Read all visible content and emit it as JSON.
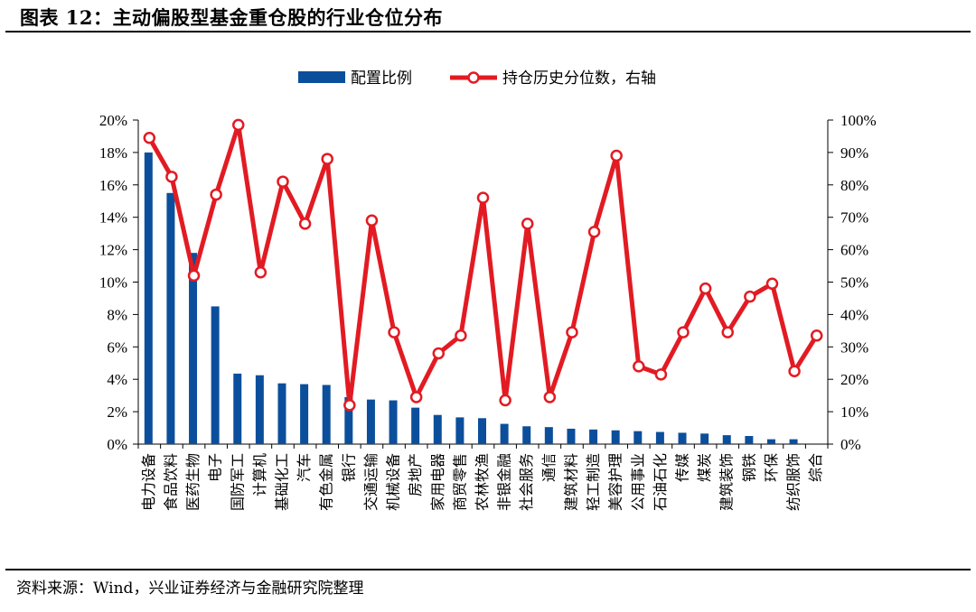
{
  "header": {
    "title": "图表 12：主动偏股型基金重仓股的行业仓位分布"
  },
  "footer": {
    "source": "资料来源：Wind，兴业证券经济与金融研究院整理"
  },
  "colors": {
    "bar": "#0b4f9c",
    "line": "#e21b23",
    "marker_fill": "#ffffff"
  },
  "chart_data": {
    "type": "bar",
    "categories": [
      "电力设备",
      "食品饮料",
      "医药生物",
      "电子",
      "国防军工",
      "计算机",
      "基础化工",
      "汽车",
      "有色金属",
      "银行",
      "交通运输",
      "机械设备",
      "房地产",
      "家用电器",
      "商贸零售",
      "农林牧渔",
      "非银金融",
      "社会服务",
      "通信",
      "建筑材料",
      "轻工制造",
      "美容护理",
      "公用事业",
      "石油石化",
      "传媒",
      "煤炭",
      "建筑装饰",
      "钢铁",
      "环保",
      "纺织服饰",
      "综合"
    ],
    "series": [
      {
        "name": "配置比例",
        "type": "bar",
        "axis": "left",
        "values": [
          18.0,
          15.5,
          11.8,
          8.5,
          4.35,
          4.25,
          3.75,
          3.7,
          3.65,
          2.9,
          2.75,
          2.7,
          2.25,
          1.8,
          1.65,
          1.6,
          1.25,
          1.1,
          1.05,
          0.95,
          0.9,
          0.85,
          0.8,
          0.75,
          0.7,
          0.65,
          0.55,
          0.5,
          0.3,
          0.3,
          0.0
        ]
      },
      {
        "name": "持仓历史分位数，右轴",
        "type": "line",
        "axis": "right",
        "values": [
          94.5,
          82.5,
          52.0,
          77.0,
          98.5,
          53.0,
          81.0,
          68.0,
          88.0,
          12.0,
          69.0,
          34.5,
          14.5,
          28.0,
          33.5,
          76.0,
          13.5,
          68.0,
          14.5,
          34.5,
          65.5,
          89.0,
          24.0,
          21.5,
          34.5,
          48.0,
          34.5,
          45.5,
          49.5,
          22.5,
          33.5
        ]
      }
    ],
    "y_left": {
      "min": 0,
      "max": 20,
      "step": 2,
      "tick_labels": [
        "0%",
        "2%",
        "4%",
        "6%",
        "8%",
        "10%",
        "12%",
        "14%",
        "16%",
        "18%",
        "20%"
      ]
    },
    "y_right": {
      "min": 0,
      "max": 100,
      "step": 10,
      "tick_labels": [
        "0%",
        "10%",
        "20%",
        "30%",
        "40%",
        "50%",
        "60%",
        "70%",
        "80%",
        "90%",
        "100%"
      ]
    },
    "legend": [
      "配置比例",
      "持仓历史分位数，右轴"
    ],
    "legend_position": "top-center",
    "grid": false
  }
}
